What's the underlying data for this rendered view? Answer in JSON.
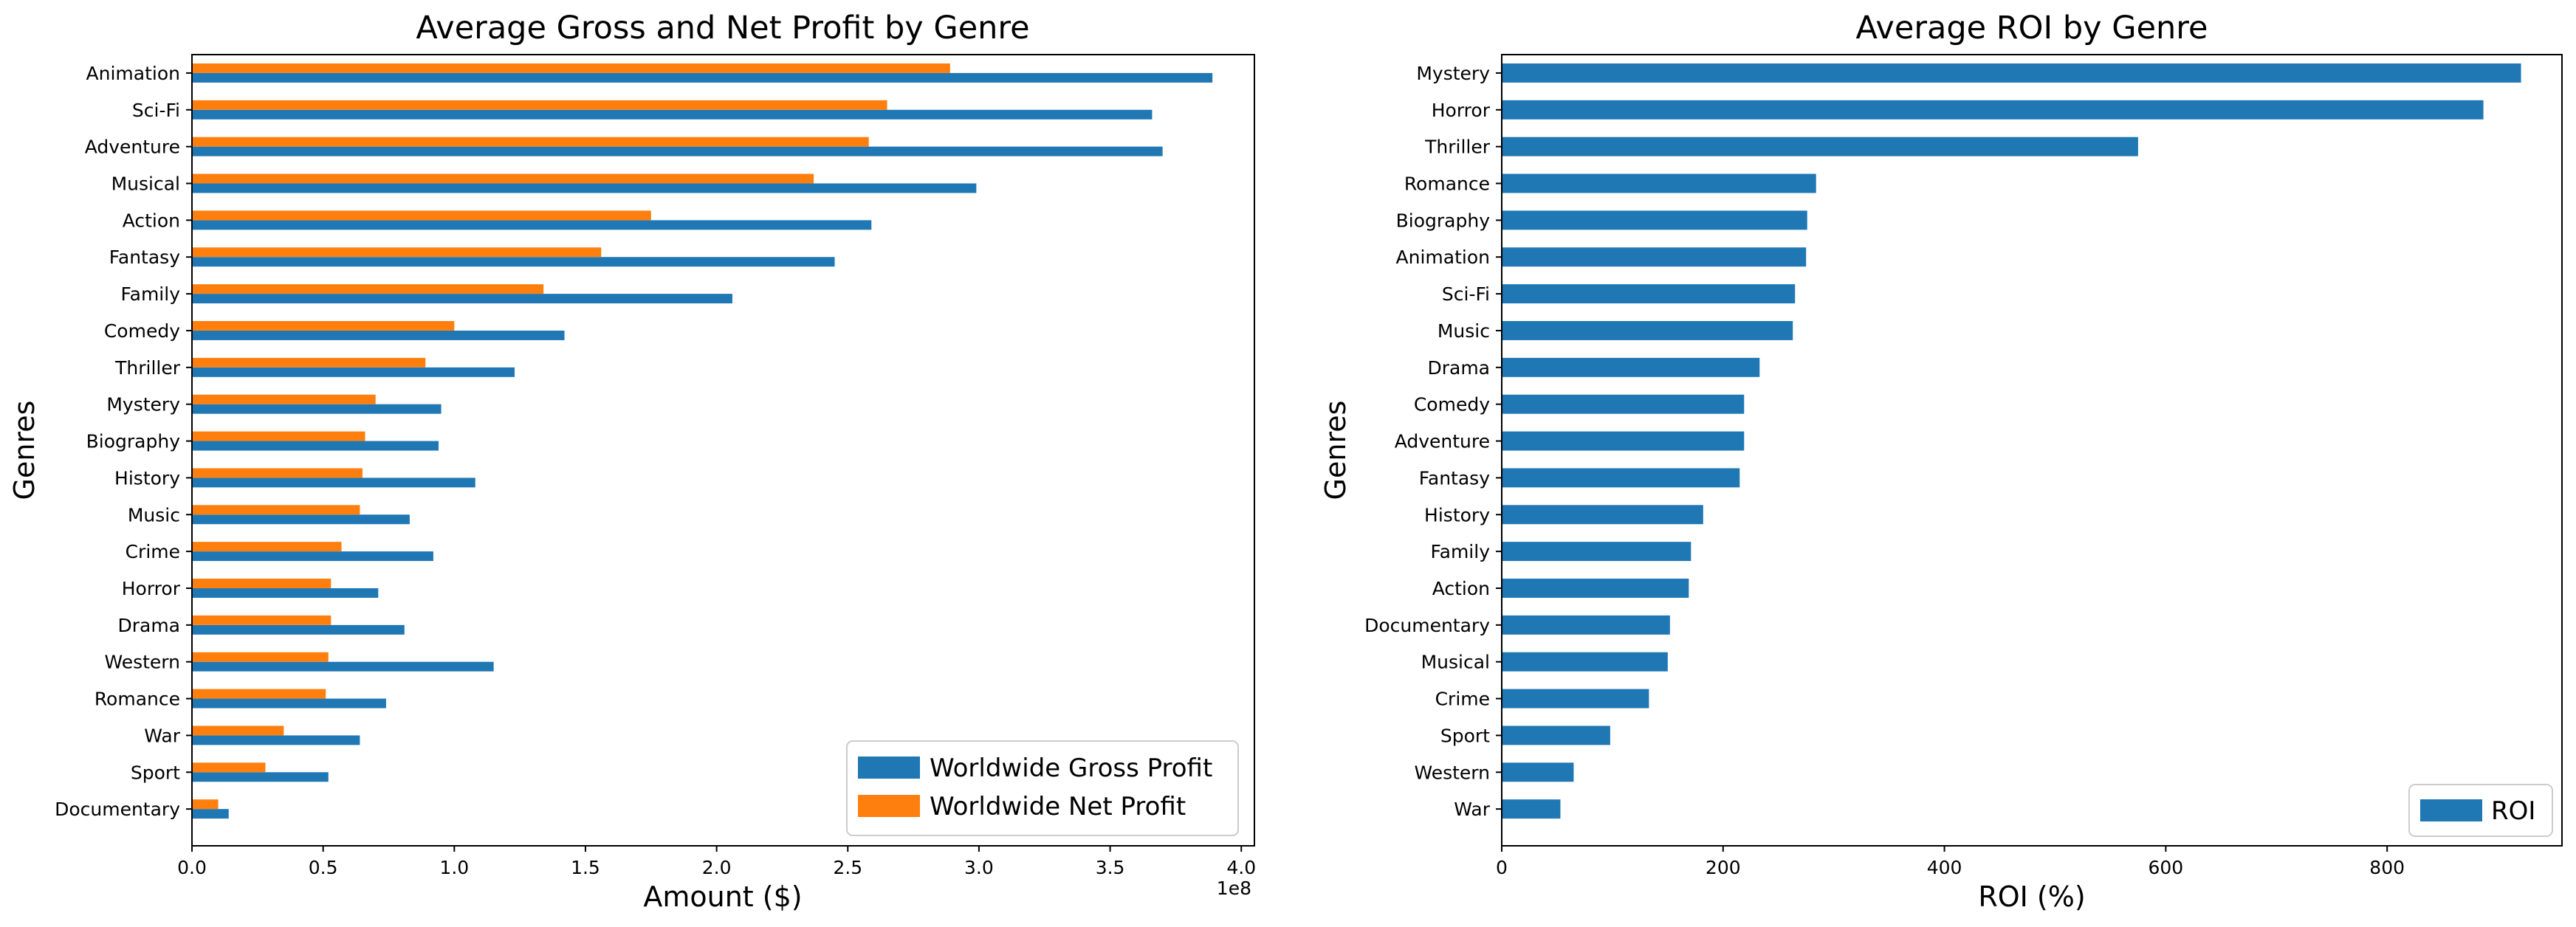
{
  "colors": {
    "gross": "#1f77b4",
    "net": "#ff7f0e",
    "roi": "#1f77b4"
  },
  "chart_data": [
    {
      "type": "bar",
      "orientation": "horizontal",
      "title": "Average Gross and Net Profit by Genre",
      "xlabel": "Amount ($)",
      "ylabel": "Genres",
      "x_offset_label": "1e8",
      "xlim": [
        0,
        4.05
      ],
      "x_ticks": [
        0.0,
        0.5,
        1.0,
        1.5,
        2.0,
        2.5,
        3.0,
        3.5,
        4.0
      ],
      "x_tick_labels": [
        "0.0",
        "0.5",
        "1.0",
        "1.5",
        "2.0",
        "2.5",
        "3.0",
        "3.5",
        "4.0"
      ],
      "legend_position": "lower-right",
      "categories": [
        "Animation",
        "Sci-Fi",
        "Adventure",
        "Musical",
        "Action",
        "Fantasy",
        "Family",
        "Comedy",
        "Thriller",
        "Mystery",
        "Biography",
        "History",
        "Music",
        "Crime",
        "Horror",
        "Drama",
        "Western",
        "Romance",
        "War",
        "Sport",
        "Documentary"
      ],
      "series": [
        {
          "name": "Worldwide Gross Profit",
          "values": [
            3.89,
            3.66,
            3.7,
            2.99,
            2.59,
            2.45,
            2.06,
            1.42,
            1.23,
            0.95,
            0.94,
            1.08,
            0.83,
            0.92,
            0.71,
            0.81,
            1.15,
            0.74,
            0.64,
            0.52,
            0.14
          ]
        },
        {
          "name": "Worldwide Net Profit",
          "values": [
            2.89,
            2.65,
            2.58,
            2.37,
            1.75,
            1.56,
            1.34,
            1.0,
            0.89,
            0.7,
            0.66,
            0.65,
            0.64,
            0.57,
            0.53,
            0.53,
            0.52,
            0.51,
            0.35,
            0.28,
            0.1
          ]
        }
      ]
    },
    {
      "type": "bar",
      "orientation": "horizontal",
      "title": "Average ROI by Genre",
      "xlabel": "ROI (%)",
      "ylabel": "Genres",
      "xlim": [
        0,
        958
      ],
      "x_ticks": [
        0,
        200,
        400,
        600,
        800
      ],
      "x_tick_labels": [
        "0",
        "200",
        "400",
        "600",
        "800"
      ],
      "legend_position": "lower-right",
      "categories": [
        "Mystery",
        "Horror",
        "Thriller",
        "Romance",
        "Biography",
        "Animation",
        "Sci-Fi",
        "Music",
        "Drama",
        "Comedy",
        "Adventure",
        "Fantasy",
        "History",
        "Family",
        "Action",
        "Documentary",
        "Musical",
        "Crime",
        "Sport",
        "Western",
        "War"
      ],
      "series": [
        {
          "name": "ROI",
          "values": [
            921,
            887,
            575,
            284,
            276,
            275,
            265,
            263,
            233,
            219,
            219,
            215,
            182,
            171,
            169,
            152,
            150,
            133,
            98,
            65,
            53
          ]
        }
      ]
    }
  ]
}
